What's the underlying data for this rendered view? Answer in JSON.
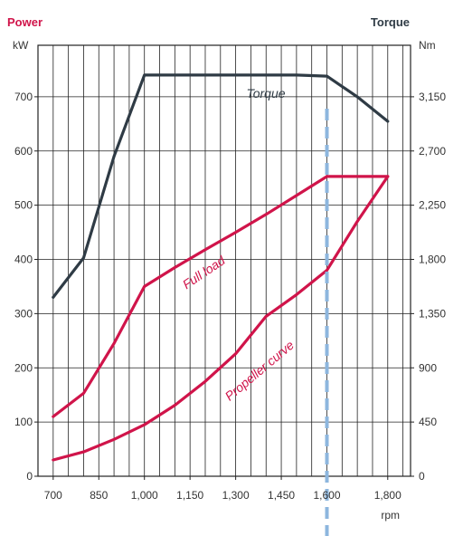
{
  "chart_data": {
    "type": "line",
    "left_axis_title": "Power",
    "right_axis_title": "Torque",
    "left_unit": "kW",
    "right_unit": "Nm",
    "x_unit": "rpm",
    "x_ticks": [
      "700",
      "850",
      "1,000",
      "1,150",
      "1,300",
      "1,450",
      "1,600",
      "1,800"
    ],
    "y_left_ticks": [
      "0",
      "100",
      "200",
      "300",
      "400",
      "500",
      "600",
      "700"
    ],
    "y_right_ticks": [
      "0",
      "450",
      "900",
      "1,350",
      "1,800",
      "2,250",
      "2,700",
      "3,150"
    ],
    "xlim": [
      650,
      1875
    ],
    "ylim": [
      0,
      795
    ],
    "y2lim": [
      0,
      3577.5
    ],
    "grid": true,
    "rated_speed_marker": 1600,
    "series": [
      {
        "name": "Torque",
        "axis": "right",
        "color": "#2f3b45",
        "x": [
          700,
          800,
          900,
          1000,
          1100,
          1200,
          1300,
          1400,
          1500,
          1600,
          1700,
          1800
        ],
        "y": [
          1485,
          1812,
          2655,
          3330,
          3330,
          3330,
          3330,
          3330,
          3330,
          3321,
          3150,
          2946
        ]
      },
      {
        "name": "Full load",
        "axis": "left",
        "color": "#d0144a",
        "x": [
          700,
          800,
          900,
          1000,
          1100,
          1200,
          1300,
          1400,
          1500,
          1600,
          1700,
          1800
        ],
        "y": [
          110,
          153,
          245,
          350,
          385,
          418,
          450,
          483,
          518,
          553,
          553,
          553
        ]
      },
      {
        "name": "Propeller curve",
        "axis": "left",
        "color": "#d0144a",
        "x": [
          700,
          800,
          900,
          1000,
          1100,
          1200,
          1300,
          1400,
          1500,
          1600,
          1700,
          1800
        ],
        "y": [
          30,
          45,
          68,
          95,
          131,
          175,
          226,
          295,
          335,
          380,
          470,
          553
        ]
      }
    ],
    "label_colors": {
      "power": "#d0144a",
      "torque": "#2f3b45",
      "marker": "#8db6de"
    }
  }
}
